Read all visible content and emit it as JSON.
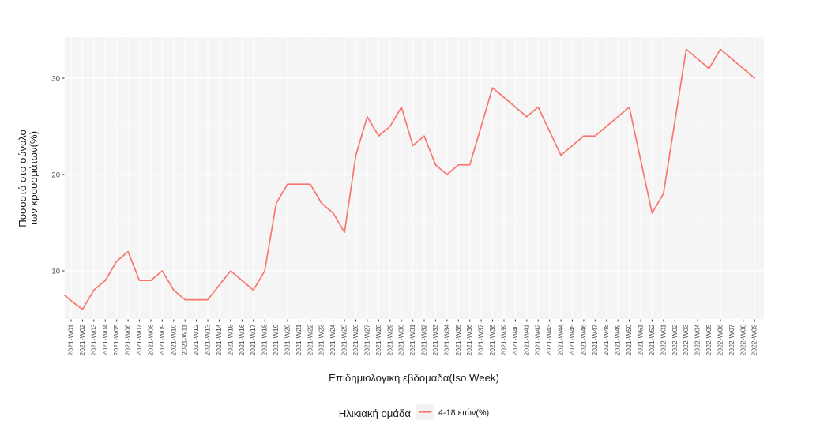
{
  "chart_data": {
    "type": "line",
    "title": "",
    "xlabel": "Επιδημιολογική εβδομάδα(Iso Week)",
    "ylabel": "Ποσοστό στο σύνολο των κρουσμάτων(%)",
    "ylabel_lines": {
      "line1": "Ποσοστό στο σύνολο",
      "line2": "των κρουσμάτων(%)"
    },
    "categories": [
      "2021-W01",
      "2021-W02",
      "2021-W03",
      "2021-W04",
      "2021-W05",
      "2021-W06",
      "2021-W07",
      "2021-W08",
      "2021-W09",
      "2021-W10",
      "2021-W11",
      "2021-W12",
      "2021-W13",
      "2021-W14",
      "2021-W15",
      "2021-W16",
      "2021-W17",
      "2021-W18",
      "2021-W19",
      "2021-W20",
      "2021-W21",
      "2021-W22",
      "2021-W23",
      "2021-W24",
      "2021-W25",
      "2021-W26",
      "2021-W27",
      "2021-W28",
      "2021-W29",
      "2021-W30",
      "2021-W31",
      "2021-W32",
      "2021-W33",
      "2021-W34",
      "2021-W35",
      "2021-W36",
      "2021-W37",
      "2021-W38",
      "2021-W39",
      "2021-W40",
      "2021-W41",
      "2021-W42",
      "2021-W43",
      "2021-W44",
      "2021-W45",
      "2021-W46",
      "2021-W47",
      "2021-W48",
      "2021-W49",
      "2021-W50",
      "2021-W51",
      "2021-W52",
      "2022-W01",
      "2022-W02",
      "2022-W03",
      "2022-W04",
      "2022-W05",
      "2022-W06",
      "2022-W07",
      "2022-W08",
      "2022-W09"
    ],
    "series": [
      {
        "name": "4-18 ετών(%)",
        "color": "#F8766D",
        "edge_start_value": 7.45,
        "values": [
          6.9,
          6,
          8,
          9,
          11,
          12,
          9,
          9,
          10,
          8,
          7,
          7,
          7,
          8.5,
          10,
          9,
          8,
          10,
          17,
          19,
          19,
          19,
          17,
          16,
          14,
          22,
          26,
          24,
          25,
          27,
          23,
          24,
          21,
          20,
          21,
          21,
          25,
          29,
          28,
          27,
          26,
          27,
          24.5,
          22,
          23,
          24,
          24,
          25,
          26,
          27,
          21.5,
          16,
          18,
          25.5,
          33,
          32,
          31,
          33,
          32,
          31,
          30
        ]
      }
    ],
    "y_axis": {
      "ticks": [
        10,
        20,
        30
      ],
      "minor_ticks": [
        15,
        25
      ],
      "range_shown": [
        5,
        34.3
      ]
    },
    "legend": {
      "position": "bottom",
      "title": "Ηλικιακή ομάδα",
      "entries": [
        {
          "label": "4-18 ετών(%)",
          "color": "#F8766D"
        }
      ]
    },
    "grid": "on",
    "colors": {
      "line": "#F8766D",
      "panel_bg": "#F5F5F5",
      "grid": "#FFFFFF",
      "tick_mark": "#333333",
      "tick_label": "#4D4D4D",
      "axis_text": "#1A1A1A",
      "legend_key_bg": "#F2F2F2",
      "page_bg": "#FFFFFF"
    }
  }
}
